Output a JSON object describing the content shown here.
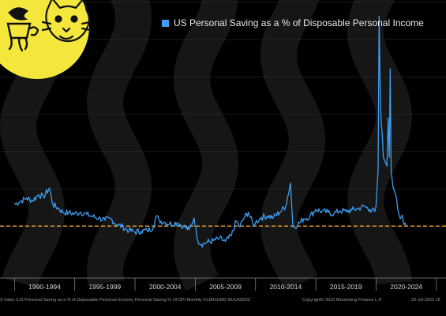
{
  "legend": {
    "label": "US Personal Saving as a % of Disposable Personal Income"
  },
  "footer": {
    "source": "US Personal Saving as a % of Disposable Personal Income",
    "source_prefix": "S Index (",
    "source_suffix": ") Personal Saving % Of DPI  Monthly 01JAN1990-30JUN2022",
    "copyright": "Copyright© 2022 Bloomberg Finance L.P.",
    "date": "29-Jul-2022 15"
  },
  "logo": {
    "text": ""
  },
  "colors": {
    "background": "#000000",
    "series": "#3d9df2",
    "reference_line": "#f0a030",
    "logo_bg": "#f4e63a",
    "wave": "#161616",
    "grid": "#2c2c2c"
  },
  "chart_data": {
    "type": "line",
    "title": "",
    "xlabel": "",
    "ylabel": "",
    "x_range": [
      1988.8,
      2025.8
    ],
    "ylim": [
      -2,
      36
    ],
    "grid": true,
    "legend_position": "top",
    "x_tick_labels": [
      "1990-1994",
      "1995-1999",
      "2000-2004",
      "2005-2009",
      "2010-2014",
      "2015-2019",
      "2020-2024"
    ],
    "reference_line": {
      "value": 5.1,
      "style": "dashed"
    },
    "series": [
      {
        "name": "US Personal Saving as a % of Disposable Personal Income",
        "points": [
          [
            1990.0,
            8.1
          ],
          [
            1990.5,
            8.5
          ],
          [
            1991.0,
            8.9
          ],
          [
            1991.5,
            8.6
          ],
          [
            1992.0,
            9.4
          ],
          [
            1992.4,
            9.1
          ],
          [
            1992.9,
            10.3
          ],
          [
            1993.2,
            8.0
          ],
          [
            1993.6,
            7.6
          ],
          [
            1994.0,
            7.0
          ],
          [
            1994.5,
            6.9
          ],
          [
            1995.0,
            6.8
          ],
          [
            1995.5,
            7.0
          ],
          [
            1996.0,
            6.7
          ],
          [
            1996.5,
            6.4
          ],
          [
            1997.0,
            6.2
          ],
          [
            1997.5,
            5.9
          ],
          [
            1998.0,
            6.1
          ],
          [
            1998.5,
            5.3
          ],
          [
            1999.0,
            5.0
          ],
          [
            1999.5,
            4.5
          ],
          [
            2000.0,
            4.3
          ],
          [
            2000.5,
            4.4
          ],
          [
            2001.0,
            4.5
          ],
          [
            2001.5,
            4.9
          ],
          [
            2001.8,
            6.5
          ],
          [
            2002.0,
            5.9
          ],
          [
            2002.5,
            5.6
          ],
          [
            2003.0,
            5.4
          ],
          [
            2003.5,
            5.6
          ],
          [
            2004.0,
            5.1
          ],
          [
            2004.5,
            4.6
          ],
          [
            2004.9,
            6.2
          ],
          [
            2005.2,
            3.2
          ],
          [
            2005.5,
            2.6
          ],
          [
            2006.0,
            2.9
          ],
          [
            2006.5,
            3.1
          ],
          [
            2007.0,
            3.4
          ],
          [
            2007.5,
            3.0
          ],
          [
            2008.0,
            3.8
          ],
          [
            2008.4,
            5.8
          ],
          [
            2008.7,
            5.0
          ],
          [
            2009.0,
            6.1
          ],
          [
            2009.4,
            7.0
          ],
          [
            2009.8,
            5.3
          ],
          [
            2010.0,
            5.6
          ],
          [
            2010.5,
            6.3
          ],
          [
            2011.0,
            6.5
          ],
          [
            2011.5,
            6.3
          ],
          [
            2012.0,
            7.0
          ],
          [
            2012.5,
            7.8
          ],
          [
            2012.9,
            11.0
          ],
          [
            2013.1,
            5.0
          ],
          [
            2013.5,
            5.3
          ],
          [
            2014.0,
            6.1
          ],
          [
            2014.5,
            6.4
          ],
          [
            2015.0,
            7.4
          ],
          [
            2015.5,
            7.1
          ],
          [
            2016.0,
            7.0
          ],
          [
            2016.5,
            6.8
          ],
          [
            2017.0,
            7.2
          ],
          [
            2017.5,
            7.1
          ],
          [
            2018.0,
            7.3
          ],
          [
            2018.5,
            7.5
          ],
          [
            2019.0,
            7.8
          ],
          [
            2019.5,
            7.4
          ],
          [
            2019.9,
            7.1
          ],
          [
            2020.0,
            7.9
          ],
          [
            2020.17,
            12.9
          ],
          [
            2020.25,
            33.8
          ],
          [
            2020.33,
            24.5
          ],
          [
            2020.42,
            19.4
          ],
          [
            2020.5,
            17.9
          ],
          [
            2020.6,
            14.5
          ],
          [
            2020.75,
            13.9
          ],
          [
            2020.9,
            13.3
          ],
          [
            2021.0,
            19.9
          ],
          [
            2021.1,
            14.5
          ],
          [
            2021.17,
            26.6
          ],
          [
            2021.25,
            12.6
          ],
          [
            2021.4,
            10.5
          ],
          [
            2021.6,
            9.5
          ],
          [
            2021.8,
            7.4
          ],
          [
            2022.0,
            6.1
          ],
          [
            2022.17,
            6.6
          ],
          [
            2022.3,
            5.3
          ],
          [
            2022.5,
            5.1
          ]
        ]
      }
    ]
  }
}
